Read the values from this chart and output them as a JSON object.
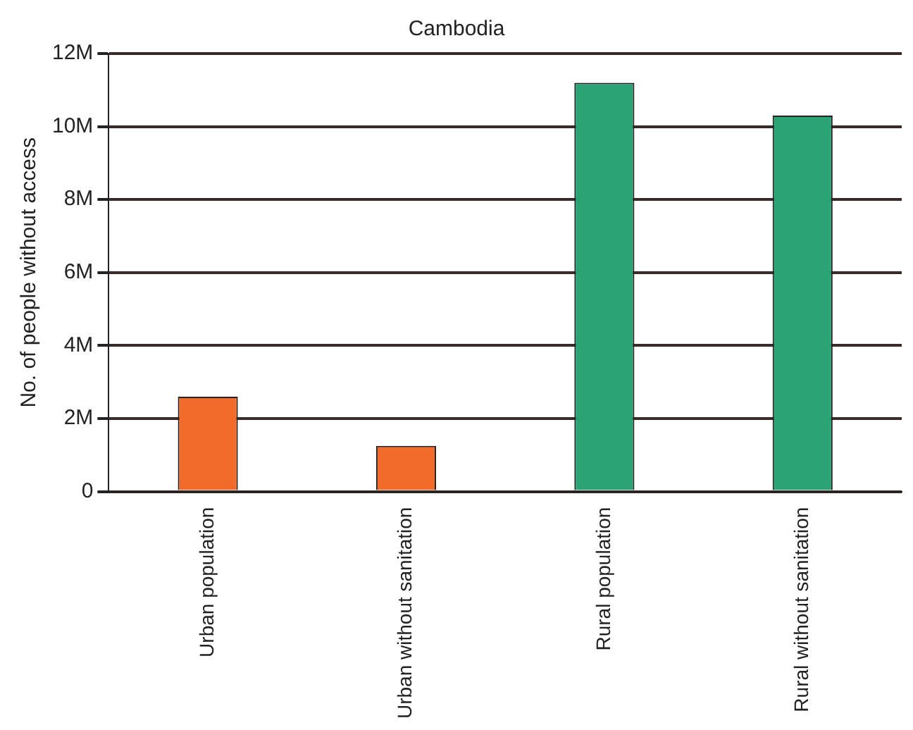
{
  "chart_data": {
    "type": "bar",
    "title": "Cambodia",
    "ylabel": "No. of people without access",
    "categories": [
      "Urban population",
      "Urban without sanitation",
      "Rural population",
      "Rural without sanitation"
    ],
    "values": [
      2.6,
      1.25,
      11.2,
      10.3
    ],
    "colors": [
      "#f26b2a",
      "#f26b2a",
      "#2ba375",
      "#2ba375"
    ],
    "ylim": [
      0,
      12
    ],
    "yticks": [
      {
        "value": 0,
        "label": "0"
      },
      {
        "value": 2,
        "label": "2M"
      },
      {
        "value": 4,
        "label": "4M"
      },
      {
        "value": 6,
        "label": "6M"
      },
      {
        "value": 8,
        "label": "8M"
      },
      {
        "value": 10,
        "label": "10M"
      },
      {
        "value": 12,
        "label": "12M"
      }
    ],
    "grid": "y",
    "legend": false
  }
}
